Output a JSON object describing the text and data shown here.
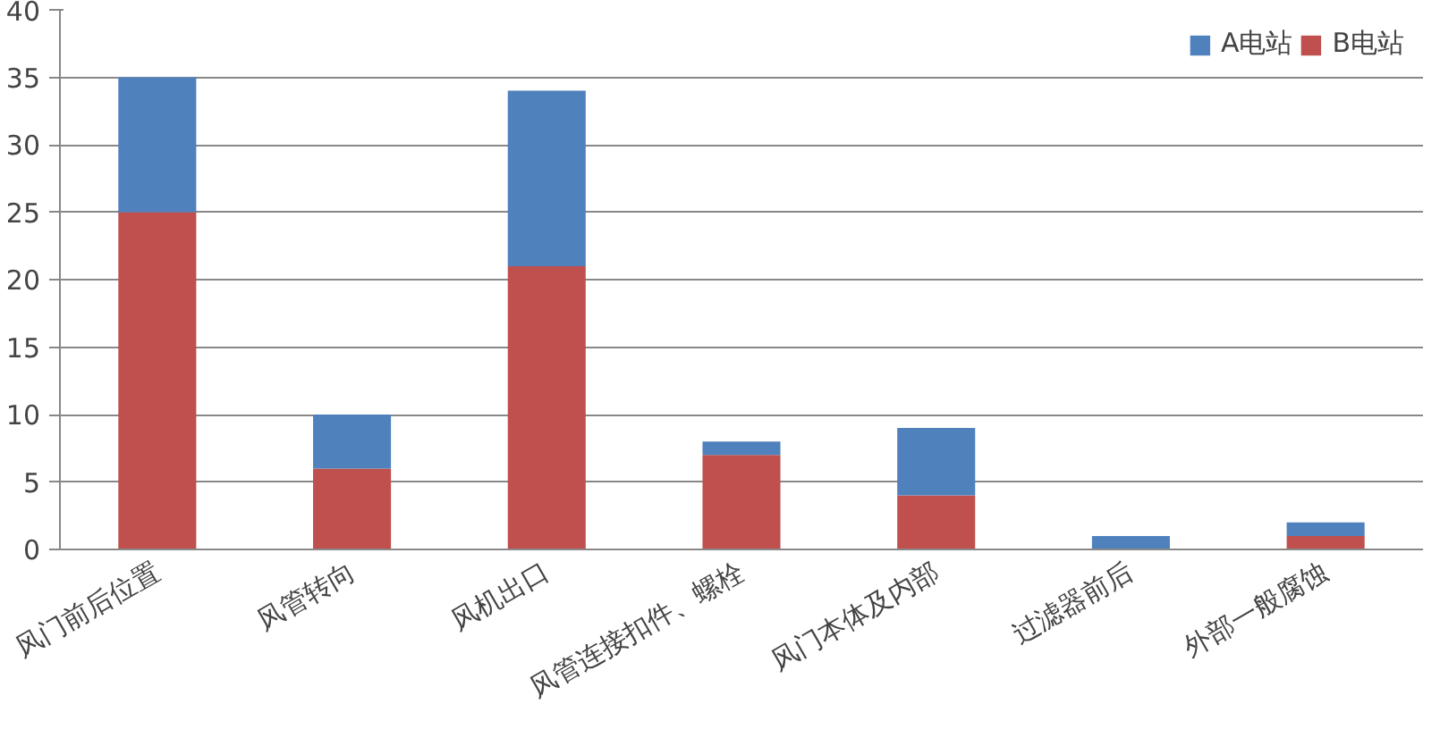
{
  "chart_data": {
    "type": "bar",
    "stacked": true,
    "categories": [
      "风门前后位置",
      "风管转向",
      "风机出口",
      "风管连接扣件、螺栓",
      "风门本体及内部",
      "过滤器前后",
      "外部一般腐蚀"
    ],
    "series": [
      {
        "name": "B电站",
        "color": "#c0504d",
        "values": [
          25,
          6,
          21,
          7,
          4,
          0,
          1
        ]
      },
      {
        "name": "A电站",
        "color": "#4f81bd",
        "values": [
          10,
          4,
          13,
          1,
          5,
          1,
          1
        ]
      }
    ],
    "ylim": [
      0,
      40
    ],
    "yticks": [
      0,
      5,
      10,
      15,
      20,
      25,
      30,
      35,
      40
    ],
    "grid": "y",
    "legend": "top right"
  }
}
